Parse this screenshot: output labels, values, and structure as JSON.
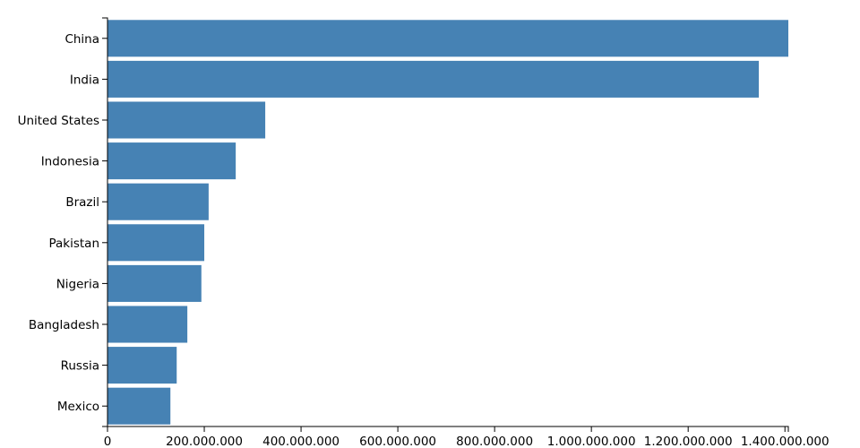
{
  "chart_data": {
    "type": "bar",
    "orientation": "horizontal",
    "color": "#4682b4",
    "categories": [
      "China",
      "India",
      "United States",
      "Indonesia",
      "Brazil",
      "Pakistan",
      "Nigeria",
      "Bangladesh",
      "Russia",
      "Mexico"
    ],
    "values": [
      1407000000,
      1346000000,
      326000000,
      265000000,
      209000000,
      200000000,
      194000000,
      165000000,
      143000000,
      130000000
    ],
    "xlim": [
      0,
      1407000000
    ],
    "xticks": [
      0,
      {
        "value": 200000000,
        "label": "200.000.000"
      },
      {
        "value": 400000000,
        "label": "400.000.000"
      },
      {
        "value": 600000000,
        "label": "600.000.000"
      },
      {
        "value": 800000000,
        "label": "800.000.000"
      },
      {
        "value": 1000000000,
        "label": "1.000.000.000"
      },
      {
        "value": 1200000000,
        "label": "1.200.000.000"
      },
      {
        "value": 1400000000,
        "label": "1.400.000.000"
      }
    ]
  }
}
